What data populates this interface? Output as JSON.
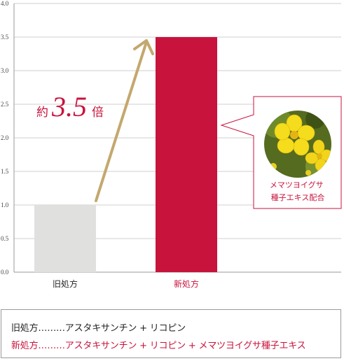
{
  "colors": {
    "old_bar": "#e0e0de",
    "new_bar": "#c8133c",
    "accent_text": "#c8133c",
    "arrow": "#c4a86d",
    "grid": "#cfcfcf",
    "axis": "#9a9a9a",
    "callout_border": "#c8133c"
  },
  "chart_data": {
    "type": "bar",
    "categories": [
      "旧処方",
      "新処方"
    ],
    "values": [
      1.0,
      3.5
    ],
    "yticks": [
      "0.0",
      "0.5",
      "1.0",
      "1.5",
      "2.0",
      "2.5",
      "3.0",
      "3.5",
      "4.0"
    ],
    "ylim": [
      0,
      4
    ],
    "grid": true,
    "title": "",
    "xlabel": "",
    "ylabel": "",
    "annotation": {
      "prefix": "約",
      "value": "3.5",
      "suffix": "倍"
    },
    "callout": {
      "lines": [
        "メマツヨイグサ",
        "種子エキス配合"
      ],
      "image": "yellow-flower-photo"
    }
  },
  "legend": {
    "old_line": "旧処方………アスタキサンチン + リコピン",
    "new_line": "新処方………アスタキサンチン + リコピン + メマツヨイグサ種子エキス"
  }
}
